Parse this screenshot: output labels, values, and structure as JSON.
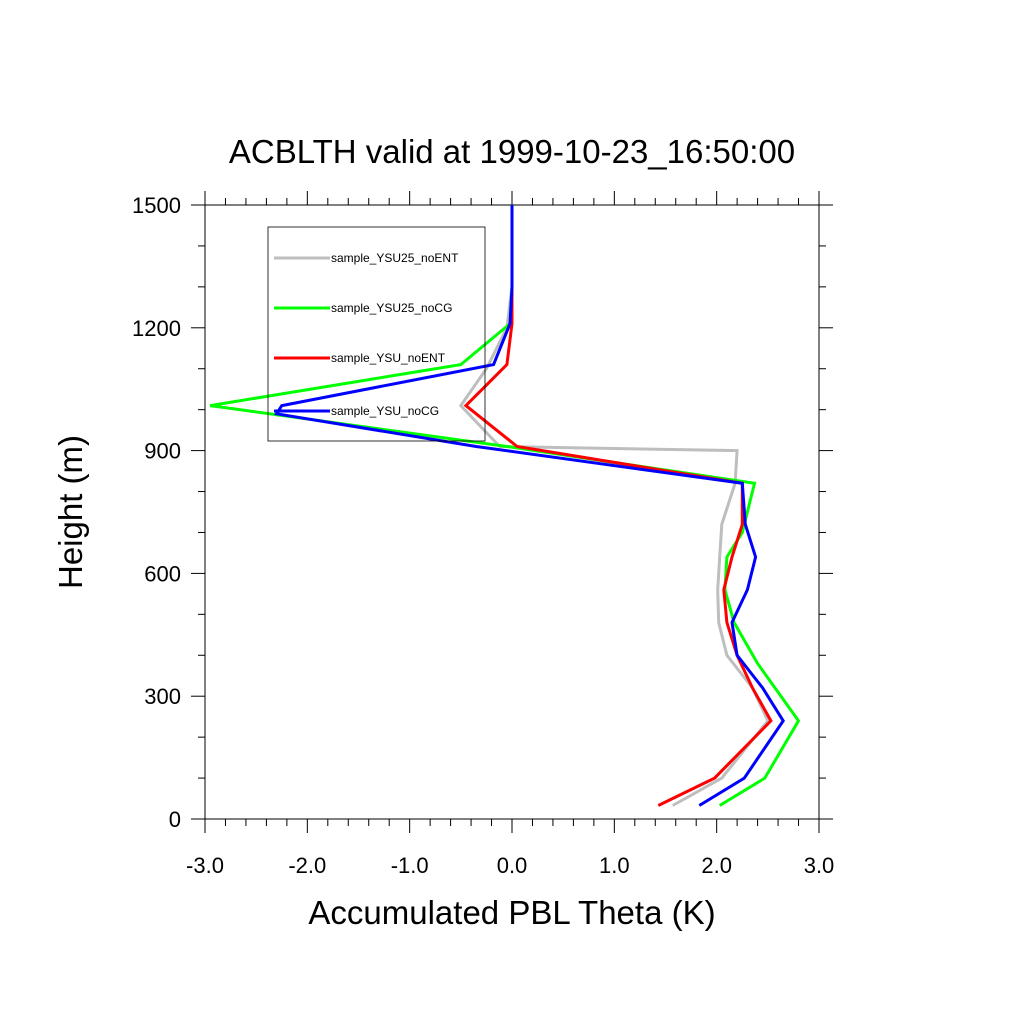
{
  "chart_data": {
    "type": "line",
    "title": "ACBLTH valid at 1999-10-23_16:50:00",
    "xlabel": "Accumulated PBL Theta (K)",
    "ylabel": "Height (m)",
    "xlim": [
      -3.0,
      3.0
    ],
    "ylim": [
      0,
      1500
    ],
    "x_ticks": [
      "-3.0",
      "-2.0",
      "-1.0",
      "0.0",
      "1.0",
      "2.0",
      "3.0"
    ],
    "y_ticks": [
      "0",
      "300",
      "600",
      "900",
      "1200",
      "1500"
    ],
    "x_tick_values": [
      -3,
      -2,
      -1,
      0,
      1,
      2,
      3
    ],
    "y_tick_values": [
      0,
      300,
      600,
      900,
      1200,
      1500
    ],
    "grid": false,
    "legend_position": "upper-left",
    "series": [
      {
        "name": "sample_YSU25_noENT",
        "color": "#bebebe",
        "x": [
          1.57,
          2.05,
          2.5,
          2.35,
          2.1,
          2.02,
          2.01,
          2.03,
          2.05,
          2.18,
          2.2,
          -0.12,
          -0.5,
          -0.25,
          -0.05,
          0.0,
          0.0
        ],
        "y": [
          33,
          100,
          240,
          320,
          400,
          480,
          560,
          640,
          720,
          820,
          900,
          910,
          1010,
          1100,
          1200,
          1300,
          1500
        ]
      },
      {
        "name": "sample_YSU25_noCG",
        "color": "#00ff00",
        "x": [
          2.03,
          2.47,
          2.8,
          2.4,
          2.17,
          2.08,
          2.1,
          2.25,
          2.37,
          -0.05,
          -2.95,
          -0.5,
          -0.02,
          0.0,
          0.0
        ],
        "y": [
          33,
          100,
          240,
          380,
          480,
          560,
          640,
          700,
          820,
          910,
          1010,
          1110,
          1210,
          1300,
          1500
        ]
      },
      {
        "name": "sample_YSU_noENT",
        "color": "#ff0000",
        "x": [
          1.43,
          1.98,
          2.53,
          2.35,
          2.2,
          2.1,
          2.07,
          2.15,
          2.25,
          2.25,
          0.05,
          -0.45,
          -0.05,
          0.0,
          0.0
        ],
        "y": [
          33,
          100,
          240,
          320,
          400,
          480,
          560,
          640,
          720,
          820,
          910,
          1010,
          1110,
          1210,
          1500
        ]
      },
      {
        "name": "sample_YSU_noCG",
        "color": "#0000ff",
        "x": [
          1.83,
          2.27,
          2.65,
          2.45,
          2.2,
          2.15,
          2.3,
          2.38,
          2.28,
          2.25,
          -0.35,
          -2.3,
          -2.25,
          -0.18,
          -0.02,
          0.0,
          0.0
        ],
        "y": [
          33,
          100,
          240,
          320,
          400,
          480,
          560,
          640,
          720,
          820,
          910,
          990,
          1010,
          1110,
          1210,
          1300,
          1500
        ]
      }
    ]
  }
}
